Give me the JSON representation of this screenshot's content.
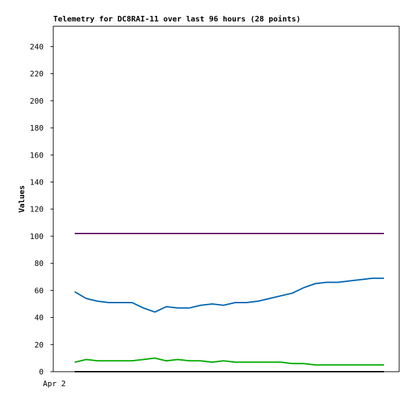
{
  "chart_data": {
    "type": "line",
    "title": "Telemetry for DC8RAI-11 over last 96 hours (28 points)",
    "y_label": "Values",
    "x_start_label": "Apr 2",
    "categories": [
      null,
      null,
      null,
      null,
      null,
      null,
      null,
      null,
      null,
      null,
      null,
      null,
      null,
      null,
      null,
      null,
      null,
      null,
      null,
      null,
      null,
      null,
      null,
      null,
      null,
      null,
      null,
      null
    ],
    "series": [
      {
        "color": "#660066",
        "values": [
          102,
          102,
          102,
          102,
          102,
          102,
          102,
          102,
          102,
          102,
          102,
          102,
          102,
          102,
          102,
          102,
          102,
          102,
          102,
          102,
          102,
          102,
          102,
          102,
          102,
          102,
          102,
          102
        ]
      },
      {
        "color": "#0066b3",
        "values": [
          59,
          54,
          52,
          51,
          51,
          51,
          47,
          44,
          48,
          47,
          47,
          49,
          50,
          49,
          51,
          51,
          52,
          54,
          56,
          58,
          62,
          65,
          66,
          66,
          67,
          68,
          69,
          69
        ]
      },
      {
        "color": "#00aa00",
        "values": [
          7,
          9,
          8,
          8,
          8,
          8,
          9,
          10,
          8,
          9,
          8,
          8,
          7,
          8,
          7,
          7,
          7,
          7,
          7,
          6,
          6,
          5,
          5,
          5,
          5,
          5,
          5,
          5
        ]
      },
      {
        "color": "#000000",
        "values": [
          0,
          0,
          0,
          0,
          0,
          0,
          0,
          0,
          0,
          0,
          0,
          0,
          0,
          0,
          0,
          0,
          0,
          0,
          0,
          0,
          0,
          0,
          0,
          0,
          0,
          0,
          0,
          0
        ]
      }
    ],
    "ylim": [
      0,
      255
    ],
    "yticks": [
      0,
      20,
      40,
      60,
      80,
      100,
      120,
      140,
      160,
      180,
      200,
      220,
      240
    ]
  }
}
